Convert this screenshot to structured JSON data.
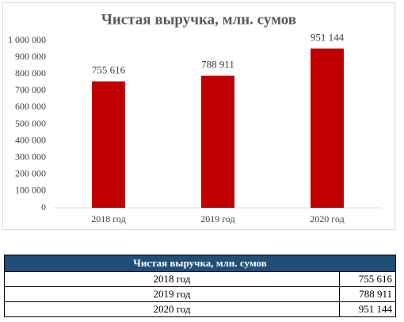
{
  "chart_data": {
    "type": "bar",
    "title": "Чистая выручка, млн. сумов",
    "categories": [
      "2018 год",
      "2019 год",
      "2020 год"
    ],
    "values": [
      755616,
      788911,
      951144
    ],
    "value_labels": [
      "755 616",
      "788 911",
      "951 144"
    ],
    "color": "#c00000",
    "ylim": [
      0,
      1000000
    ],
    "yticks": [
      0,
      {
        "value": 100000,
        "label": "100 000"
      },
      {
        "value": 200000,
        "label": "200 000"
      },
      {
        "value": 300000,
        "label": "300 000"
      },
      {
        "value": 400000,
        "label": "400 000"
      },
      {
        "value": 500000,
        "label": "500 000"
      },
      {
        "value": 600000,
        "label": "600 000"
      },
      {
        "value": 700000,
        "label": "700 000"
      },
      {
        "value": 800000,
        "label": "800 000"
      },
      {
        "value": 900000,
        "label": "900 000"
      },
      {
        "value": 1000000,
        "label": "1 000 000"
      }
    ],
    "grid": false
  },
  "table": {
    "title": "Чистая выручка, млн. сумов",
    "rows": [
      [
        "2018 год",
        "755 616"
      ],
      [
        "2019 год",
        "788 911"
      ],
      [
        "2020 год",
        "951 144"
      ]
    ]
  }
}
